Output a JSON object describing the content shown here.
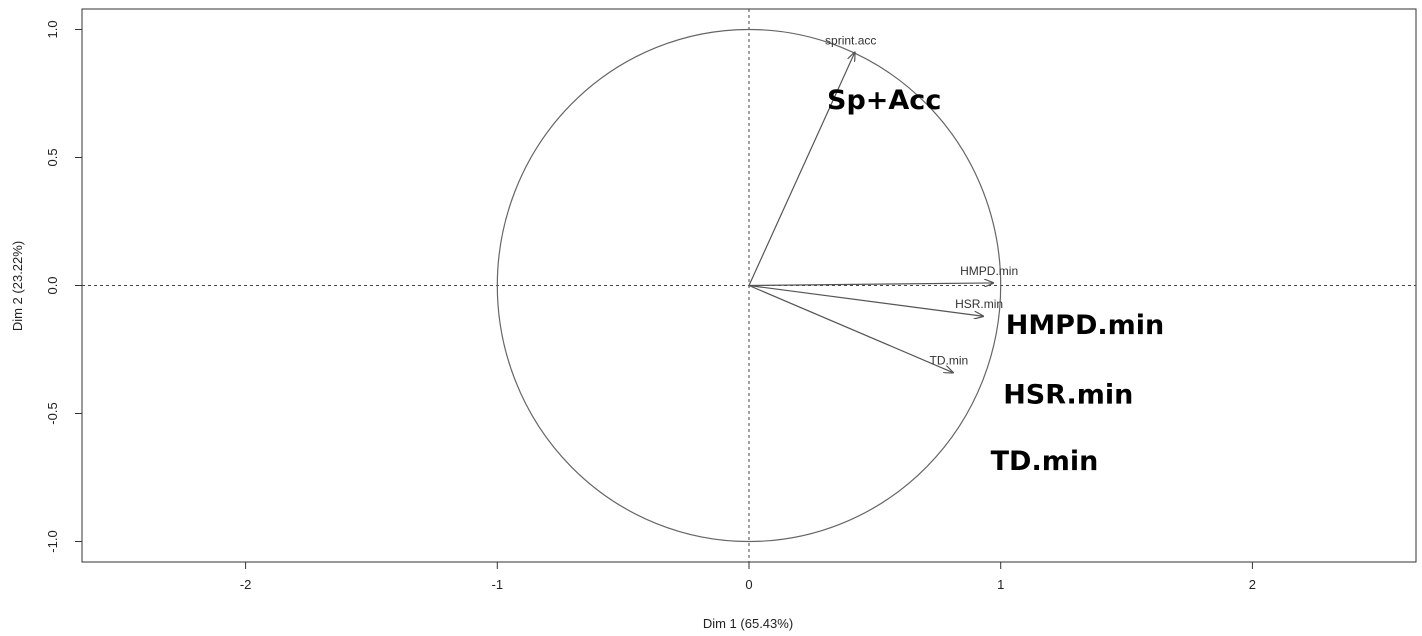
{
  "chart_data": {
    "type": "scatter",
    "subtype": "pca-correlation-circle",
    "title": "",
    "xlabel": "Dim 1 (65.43%)",
    "ylabel": "Dim 2 (23.22%)",
    "xlim": [
      -2.65,
      2.65
    ],
    "ylim": [
      -1.08,
      1.08
    ],
    "x_ticks": [
      -2,
      -1,
      0,
      1,
      2
    ],
    "x_tick_labels": [
      "-2",
      "-1",
      "0",
      "1",
      "2"
    ],
    "y_ticks": [
      -1.0,
      -0.5,
      0.0,
      0.5,
      1.0
    ],
    "y_tick_labels": [
      "-1.0",
      "-0.5",
      "0.0",
      "0.5",
      "1.0"
    ],
    "grid": false,
    "unit_circle_radius": 1,
    "reference_lines": {
      "x": 0,
      "y": 0,
      "style": "dashed"
    },
    "vectors": [
      {
        "label": "sprint.acc",
        "x": 0.42,
        "y": 0.91
      },
      {
        "label": "HMPD.min",
        "x": 0.97,
        "y": 0.01
      },
      {
        "label": "HSR.min",
        "x": 0.93,
        "y": -0.12
      },
      {
        "label": "TD.min",
        "x": 0.81,
        "y": -0.34
      }
    ],
    "annotations": [
      {
        "text": "Sp+Acc",
        "x": 0.31,
        "y": 0.69
      },
      {
        "text": "HMPD.min",
        "x": 1.02,
        "y": -0.19
      },
      {
        "text": "HSR.min",
        "x": 1.01,
        "y": -0.46
      },
      {
        "text": "TD.min",
        "x": 0.96,
        "y": -0.72
      }
    ]
  }
}
